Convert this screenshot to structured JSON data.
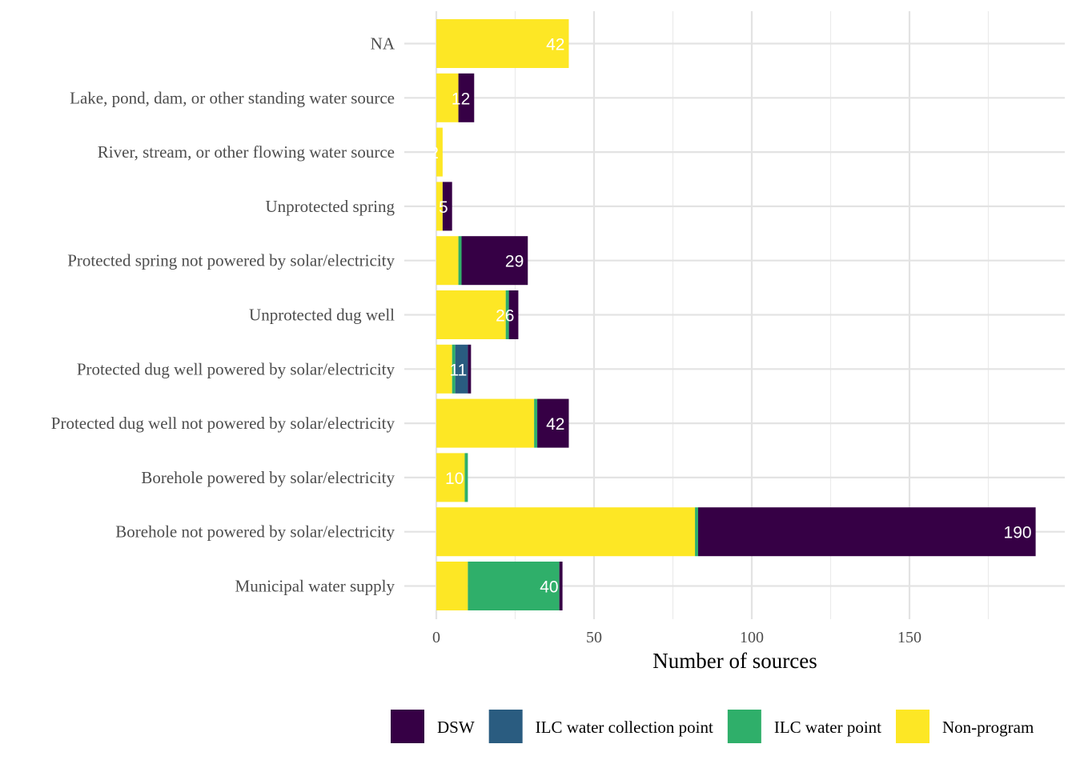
{
  "chart_data": {
    "type": "bar",
    "orientation": "horizontal",
    "stacked": true,
    "xlabel": "Number of sources",
    "ylabel": "",
    "xlim": [
      0,
      200
    ],
    "x_ticks": [
      0,
      50,
      100,
      150
    ],
    "grid": true,
    "legend_position": "bottom",
    "categories": [
      "NA",
      "Lake, pond, dam, or other standing water source",
      "River, stream, or other flowing water source",
      "Unprotected spring",
      "Protected spring not powered by solar/electricity",
      "Unprotected dug well",
      "Protected dug well powered by solar/electricity",
      "Protected dug well not powered by solar/electricity",
      "Borehole powered by solar/electricity",
      "Borehole not powered by solar/electricity",
      "Municipal water supply"
    ],
    "series": [
      {
        "name": "Non-program",
        "color": "#FDE725",
        "values": [
          42,
          7,
          2,
          2,
          7,
          22,
          5,
          31,
          9,
          82,
          10
        ]
      },
      {
        "name": "ILC water point",
        "color": "#2FAF6A",
        "values": [
          0,
          0,
          0,
          0,
          1,
          1,
          1,
          1,
          1,
          1,
          29
        ]
      },
      {
        "name": "ILC water collection point",
        "color": "#2A5C80",
        "values": [
          0,
          0,
          0,
          0,
          0,
          0,
          4,
          0,
          0,
          0,
          0
        ]
      },
      {
        "name": "DSW",
        "color": "#360045",
        "values": [
          0,
          5,
          0,
          3,
          21,
          3,
          1,
          10,
          0,
          107,
          1
        ]
      }
    ],
    "totals": [
      42,
      12,
      2,
      5,
      29,
      26,
      11,
      42,
      10,
      190,
      40
    ],
    "legend_order": [
      "DSW",
      "ILC water collection point",
      "ILC water point",
      "Non-program"
    ]
  }
}
